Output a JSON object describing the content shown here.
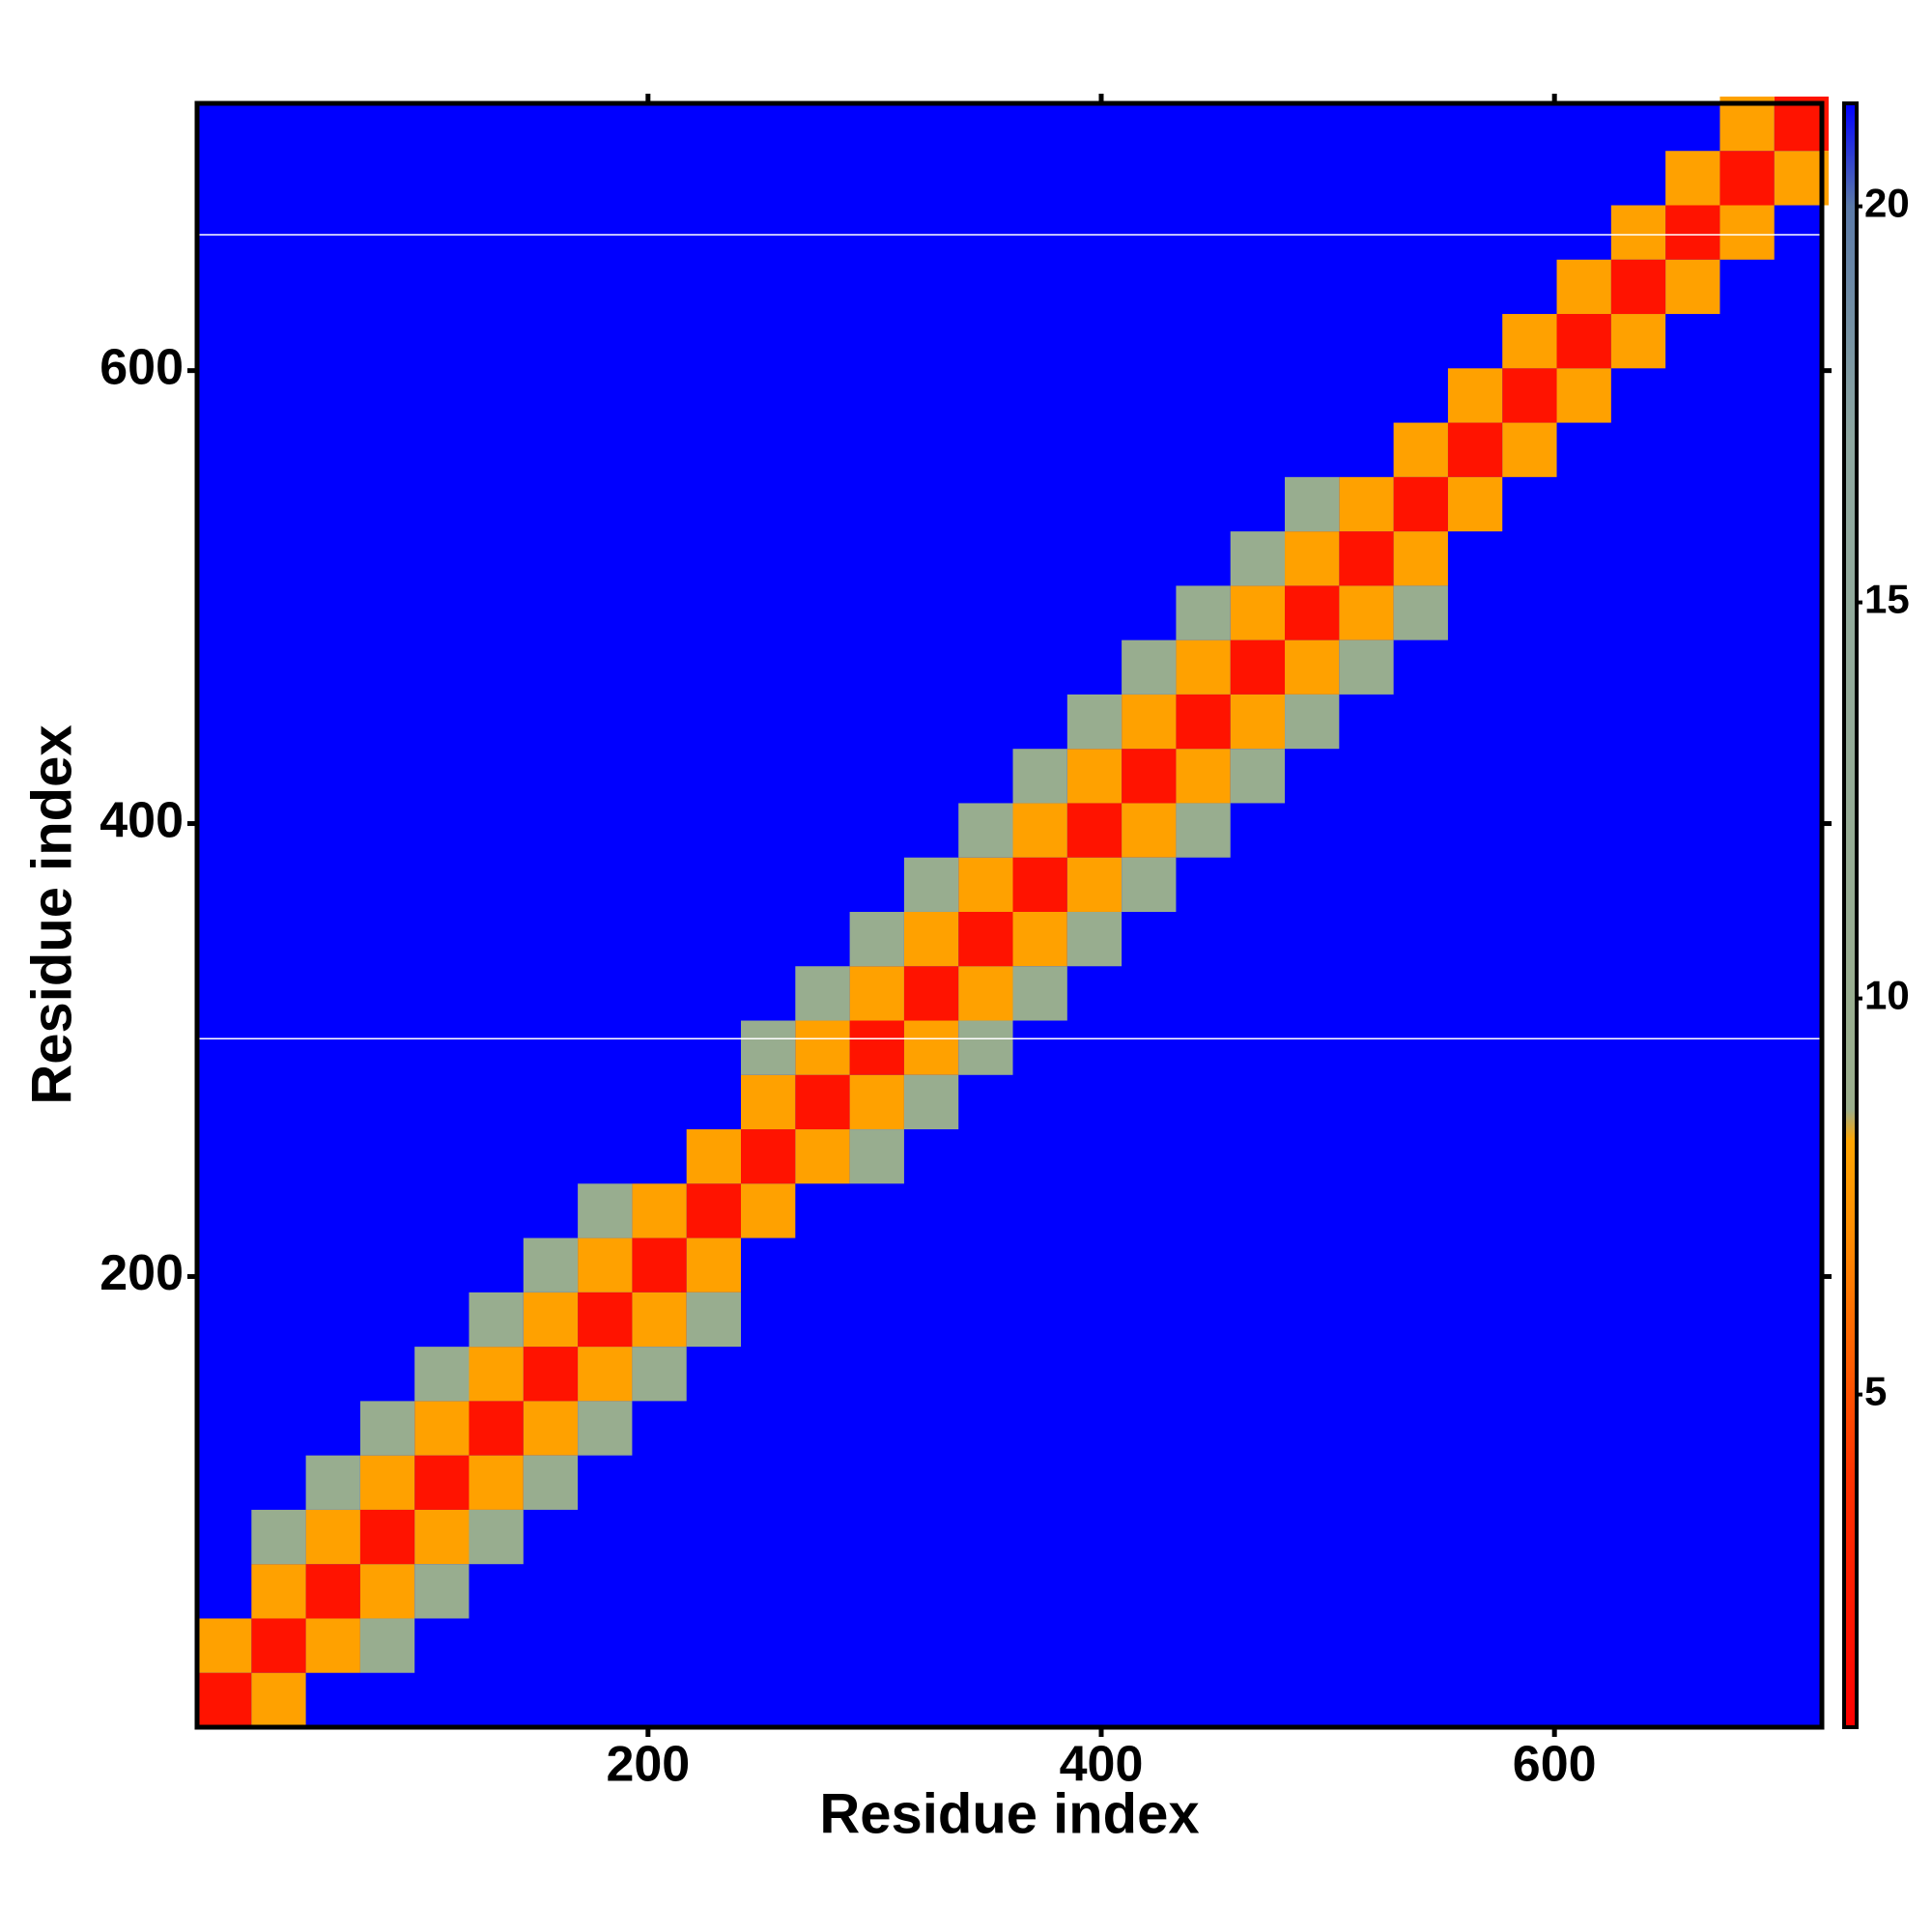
{
  "chart_data": {
    "type": "heatmap",
    "x_label": "Residue index",
    "y_label": "Residue index",
    "xlim": [
      1,
      718
    ],
    "ylim": [
      1,
      718
    ],
    "xticks": [
      200,
      400,
      600
    ],
    "yticks": [
      200,
      400,
      600
    ],
    "cell_size": 24,
    "background_color": "#0000ff",
    "null_rows": [
      305,
      660
    ],
    "x": [
      1,
      25,
      49,
      73,
      97,
      121,
      145,
      169,
      193,
      217,
      241,
      265,
      289,
      313,
      337,
      361,
      385,
      409,
      433,
      457,
      481,
      505,
      529,
      553,
      577,
      601,
      625,
      649,
      673,
      697,
      1,
      25,
      49,
      73,
      97,
      121,
      145,
      169,
      193,
      217,
      241,
      265,
      289,
      313,
      337,
      361,
      385,
      409,
      433,
      457,
      481,
      505,
      529,
      553,
      577,
      601,
      625,
      649,
      673,
      25,
      49,
      73,
      97,
      121,
      145,
      169,
      193,
      217,
      241,
      265,
      289,
      313,
      337,
      361,
      385,
      409,
      433,
      457,
      481,
      505,
      529,
      553,
      577,
      601,
      625,
      649,
      673,
      697,
      25,
      49,
      73,
      97,
      121,
      145,
      169,
      241,
      265,
      289,
      313,
      337,
      361,
      385,
      409,
      433,
      457,
      481,
      73,
      97,
      121,
      145,
      169,
      193,
      217,
      289,
      313,
      337,
      361,
      385,
      409,
      433,
      457,
      481,
      505,
      529
    ],
    "y": [
      1,
      25,
      49,
      73,
      97,
      121,
      145,
      169,
      193,
      217,
      241,
      265,
      289,
      313,
      337,
      361,
      385,
      409,
      433,
      457,
      481,
      505,
      529,
      553,
      577,
      601,
      625,
      649,
      673,
      697,
      25,
      49,
      73,
      97,
      121,
      145,
      169,
      193,
      217,
      241,
      265,
      289,
      313,
      337,
      361,
      385,
      409,
      433,
      457,
      481,
      505,
      529,
      553,
      577,
      601,
      625,
      649,
      673,
      697,
      1,
      25,
      49,
      73,
      97,
      121,
      145,
      169,
      193,
      217,
      241,
      265,
      289,
      313,
      337,
      361,
      385,
      409,
      433,
      457,
      481,
      505,
      529,
      553,
      577,
      601,
      625,
      649,
      673,
      73,
      97,
      121,
      145,
      169,
      193,
      217,
      289,
      313,
      337,
      361,
      385,
      409,
      433,
      457,
      481,
      505,
      529,
      25,
      49,
      73,
      97,
      121,
      145,
      169,
      241,
      265,
      289,
      313,
      337,
      361,
      385,
      409,
      433,
      457,
      481
    ],
    "values": [
      2,
      2,
      2,
      2,
      2,
      2,
      2,
      2,
      2,
      2,
      2,
      2,
      2,
      2,
      2,
      2,
      2,
      2,
      2,
      2,
      2,
      2,
      2,
      2,
      2,
      2,
      2,
      2,
      2,
      2,
      8,
      8,
      8,
      8,
      8,
      8,
      8,
      8,
      8,
      8,
      8,
      8,
      8,
      8,
      8,
      8,
      8,
      8,
      8,
      8,
      8,
      8,
      8,
      8,
      8,
      8,
      8,
      8,
      8,
      8,
      8,
      8,
      8,
      8,
      8,
      8,
      8,
      8,
      8,
      8,
      8,
      8,
      8,
      8,
      8,
      8,
      8,
      8,
      8,
      8,
      8,
      8,
      8,
      8,
      8,
      8,
      8,
      8,
      10,
      10,
      10,
      10,
      10,
      10,
      10,
      10,
      10,
      10,
      10,
      10,
      10,
      10,
      10,
      10,
      10,
      10,
      10,
      10,
      10,
      10,
      10,
      10,
      10,
      10,
      10,
      10,
      10,
      10,
      10,
      10,
      10,
      10,
      10,
      10
    ],
    "colorbar": {
      "clim": [
        0.8,
        21.3
      ],
      "ticks": [
        5,
        10,
        15,
        20
      ],
      "stops": [
        [
          0.8,
          "#ff0000"
        ],
        [
          4,
          "#ff3300"
        ],
        [
          7,
          "#ff8c00"
        ],
        [
          8.2,
          "#ffa500"
        ],
        [
          8.6,
          "#9aae8c"
        ],
        [
          17,
          "#8ea8a0"
        ],
        [
          20,
          "#5b7aa8"
        ],
        [
          21.3,
          "#0000ff"
        ]
      ]
    }
  }
}
